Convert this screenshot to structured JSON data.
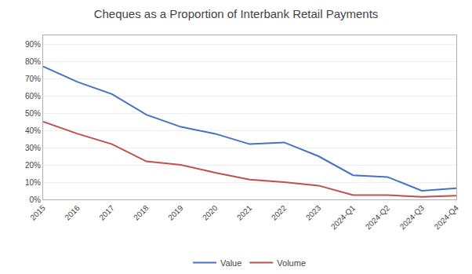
{
  "chart_data": {
    "type": "line",
    "title": "Cheques as a Proportion of Interbank Retail Payments",
    "categories": [
      "2015",
      "2016",
      "2017",
      "2018",
      "2019",
      "2020",
      "2021",
      "2022",
      "2023",
      "2024-Q1",
      "2024-Q2",
      "2024-Q3",
      "2024-Q4"
    ],
    "series": [
      {
        "name": "Value",
        "color": "#4472C4",
        "values": [
          0.77,
          0.68,
          0.61,
          0.49,
          0.42,
          0.38,
          0.32,
          0.33,
          0.25,
          0.14,
          0.13,
          0.05,
          0.065
        ]
      },
      {
        "name": "Volume",
        "color": "#C0504D",
        "values": [
          0.45,
          0.38,
          0.32,
          0.22,
          0.2,
          0.155,
          0.115,
          0.1,
          0.08,
          0.025,
          0.025,
          0.015,
          0.022
        ]
      }
    ],
    "ylim": [
      0,
      0.95
    ],
    "yticks": [
      {
        "value": 0.0,
        "label": "0%"
      },
      {
        "value": 0.1,
        "label": "10%"
      },
      {
        "value": 0.2,
        "label": "20%"
      },
      {
        "value": 0.3,
        "label": "30%"
      },
      {
        "value": 0.4,
        "label": "40%"
      },
      {
        "value": 0.5,
        "label": "50%"
      },
      {
        "value": 0.6,
        "label": "60%"
      },
      {
        "value": 0.7,
        "label": "70%"
      },
      {
        "value": 0.8,
        "label": "80%"
      },
      {
        "value": 0.9,
        "label": "90%"
      }
    ],
    "grid": true,
    "legend": "bottom"
  }
}
